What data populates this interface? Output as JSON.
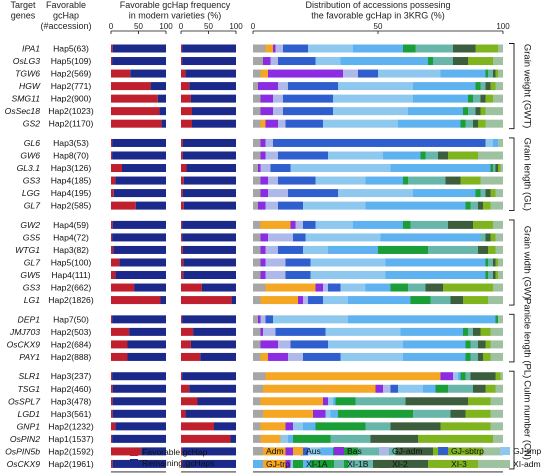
{
  "headers": {
    "target_genes": "Target\ngenes",
    "favorable_gchap": "Favorable\ngcHap\n(#accession)",
    "frequency": "Favorable gcHap frequency\nin modern varieties (%)",
    "distribution": "Distribution of accessions possesing\nthe favorable gcHap in 3KRG (%)"
  },
  "panel_labels": {
    "left": "Geng/japonica",
    "right": "Xian/indica"
  },
  "tick_labels": [
    "0",
    "50",
    "100"
  ],
  "legend_fav": {
    "favorable": "Favorable gcHap",
    "remaining": "Remaining gcHaps"
  },
  "colors": {
    "favorable": "#c0202e",
    "remaining": "#1b2a8a",
    "subpops": [
      "#a6a6a6",
      "#f5a623",
      "#8b2be2",
      "#aeb9ea",
      "#2f5fcf",
      "#8ec8ef",
      "#5eb2f0",
      "#1a9e37",
      "#68b6aa",
      "#3d5e3d",
      "#80b41e",
      "#9ec29f"
    ]
  },
  "chart_data": [
    {
      "type": "bar",
      "title": "Favorable gcHap frequency in modern varieties (%)",
      "xlim": [
        0,
        100
      ],
      "series_names": [
        "Favorable gcHap",
        "Remaining gcHaps"
      ],
      "genes": [
        "IPA1",
        "OsLG3",
        "TGW6",
        "HGW",
        "SMG11",
        "OsSec18",
        "GS2",
        "GL6",
        "GW6",
        "GL3.1",
        "GS3",
        "LGG",
        "GL7",
        "GW2",
        "GS5",
        "WTG1",
        "GL7",
        "GW5",
        "GS3",
        "LG1",
        "DEP1",
        "JMJ703",
        "OsCKX9",
        "PAY1",
        "SLR1",
        "TSG1",
        "OsSPL7",
        "LGD1",
        "GNP1",
        "OsPIN2",
        "OsPIN5b",
        "OsCKX9"
      ],
      "haps": [
        "Hap5(63)",
        "Hap5(109)",
        "Hap2(569)",
        "Hap2(771)",
        "Hap2(900)",
        "Hap2(1023)",
        "Hap2(1170)",
        "Hap3(53)",
        "Hap8(70)",
        "Hap3(126)",
        "Hap4(185)",
        "Hap4(195)",
        "Hap2(585)",
        "Hap4(59)",
        "Hap4(72)",
        "Hap3(82)",
        "Hap5(100)",
        "Hap4(111)",
        "Hap2(662)",
        "Hap2(1826)",
        "Hap7(50)",
        "Hap2(503)",
        "Hap2(684)",
        "Hap2(888)",
        "Hap3(237)",
        "Hap2(460)",
        "Hap3(478)",
        "Hap3(561)",
        "Hap2(1232)",
        "Hap1(1537)",
        "Hap2(1592)",
        "Hap2(1961)"
      ],
      "geng_japonica_favorable": [
        3,
        2,
        35,
        72,
        85,
        88,
        92,
        2,
        2,
        20,
        8,
        5,
        45,
        3,
        2,
        4,
        15,
        8,
        42,
        90,
        2,
        33,
        30,
        30,
        2,
        3,
        3,
        3,
        8,
        2,
        55,
        3
      ],
      "xian_indica_favorable": [
        2,
        2,
        8,
        15,
        18,
        20,
        20,
        3,
        3,
        10,
        5,
        3,
        5,
        2,
        2,
        3,
        4,
        4,
        38,
        92,
        2,
        22,
        18,
        35,
        2,
        15,
        30,
        8,
        60,
        90,
        2,
        3
      ]
    },
    {
      "type": "bar",
      "title": "Distribution of accessions possesing the favorable gcHap in 3KRG (%)",
      "xlim": [
        0,
        100
      ],
      "subpopulations": [
        "Adm",
        "Aus",
        "Bas",
        "GJ-adm",
        "GJ-sbtrp",
        "GJ-tmp",
        "GJ-trp",
        "XI-1A",
        "XI-1B",
        "XI-2",
        "XI-3",
        "XI-adm"
      ],
      "groups": [
        {
          "label": "Grain weight (GWT)",
          "rows": 7
        },
        {
          "label": "Grain length (GL)",
          "rows": 6
        },
        {
          "label": "Grain width (GW)",
          "rows": 7
        },
        {
          "label": "Panicle length (PL)",
          "rows": 4
        },
        {
          "label": "Culm number (CN)",
          "rows": 8
        }
      ],
      "composition_percent": [
        [
          5,
          3,
          1,
          3,
          10,
          18,
          20,
          5,
          15,
          9,
          9,
          2
        ],
        [
          4,
          0,
          3,
          3,
          15,
          10,
          35,
          2,
          8,
          6,
          10,
          4
        ],
        [
          3,
          3,
          30,
          6,
          8,
          25,
          18,
          1,
          2,
          1,
          1,
          2
        ],
        [
          2,
          0,
          8,
          4,
          20,
          30,
          25,
          2,
          2,
          2,
          2,
          3
        ],
        [
          3,
          0,
          5,
          4,
          20,
          32,
          22,
          2,
          3,
          2,
          3,
          4
        ],
        [
          3,
          0,
          5,
          4,
          20,
          30,
          22,
          2,
          3,
          2,
          2,
          7
        ],
        [
          3,
          2,
          5,
          3,
          15,
          30,
          25,
          2,
          3,
          2,
          3,
          7
        ],
        [
          3,
          0,
          2,
          3,
          85,
          3,
          2,
          0,
          0,
          0,
          0,
          2
        ],
        [
          3,
          0,
          2,
          5,
          20,
          22,
          15,
          2,
          5,
          4,
          12,
          10
        ],
        [
          2,
          0,
          1,
          4,
          8,
          40,
          40,
          1,
          1,
          1,
          1,
          1
        ],
        [
          3,
          0,
          3,
          4,
          15,
          20,
          15,
          2,
          15,
          6,
          8,
          9
        ],
        [
          3,
          0,
          3,
          8,
          20,
          30,
          25,
          2,
          2,
          2,
          2,
          3
        ],
        [
          2,
          0,
          3,
          5,
          10,
          25,
          40,
          2,
          3,
          2,
          3,
          5
        ],
        [
          3,
          12,
          2,
          3,
          5,
          15,
          20,
          3,
          15,
          10,
          8,
          4
        ],
        [
          3,
          0,
          3,
          10,
          5,
          30,
          40,
          0,
          2,
          2,
          2,
          3
        ],
        [
          3,
          0,
          2,
          5,
          10,
          10,
          20,
          20,
          20,
          4,
          3,
          3
        ],
        [
          3,
          0,
          2,
          8,
          10,
          30,
          40,
          1,
          2,
          1,
          1,
          2
        ],
        [
          3,
          0,
          2,
          8,
          10,
          30,
          40,
          1,
          2,
          1,
          1,
          2
        ],
        [
          5,
          20,
          3,
          2,
          5,
          10,
          10,
          7,
          7,
          7,
          20,
          4
        ],
        [
          3,
          15,
          2,
          2,
          6,
          10,
          25,
          8,
          8,
          5,
          10,
          6
        ],
        [
          2,
          0,
          1,
          2,
          3,
          30,
          59,
          1,
          0,
          0,
          0,
          2
        ],
        [
          3,
          0,
          1,
          5,
          20,
          30,
          25,
          2,
          2,
          3,
          4,
          5
        ],
        [
          3,
          0,
          7,
          5,
          15,
          30,
          25,
          2,
          3,
          3,
          2,
          5
        ],
        [
          3,
          3,
          8,
          6,
          15,
          25,
          25,
          2,
          3,
          2,
          3,
          5
        ],
        [
          5,
          70,
          5,
          1,
          0,
          1,
          1,
          2,
          2,
          10,
          2,
          1
        ],
        [
          4,
          45,
          3,
          3,
          3,
          10,
          5,
          5,
          10,
          5,
          4,
          3
        ],
        [
          3,
          25,
          2,
          0,
          0,
          2,
          1,
          8,
          20,
          25,
          9,
          5
        ],
        [
          4,
          20,
          5,
          0,
          0,
          2,
          3,
          30,
          15,
          6,
          10,
          5
        ],
        [
          3,
          10,
          3,
          0,
          0,
          4,
          5,
          20,
          10,
          20,
          20,
          5
        ],
        [
          3,
          8,
          0,
          0,
          0,
          3,
          2,
          15,
          16,
          19,
          30,
          4
        ],
        [
          3,
          10,
          3,
          3,
          3,
          5,
          5,
          10,
          15,
          15,
          20,
          8
        ],
        [
          3,
          10,
          2,
          0,
          0,
          5,
          3,
          15,
          10,
          22,
          20,
          10
        ]
      ]
    }
  ]
}
